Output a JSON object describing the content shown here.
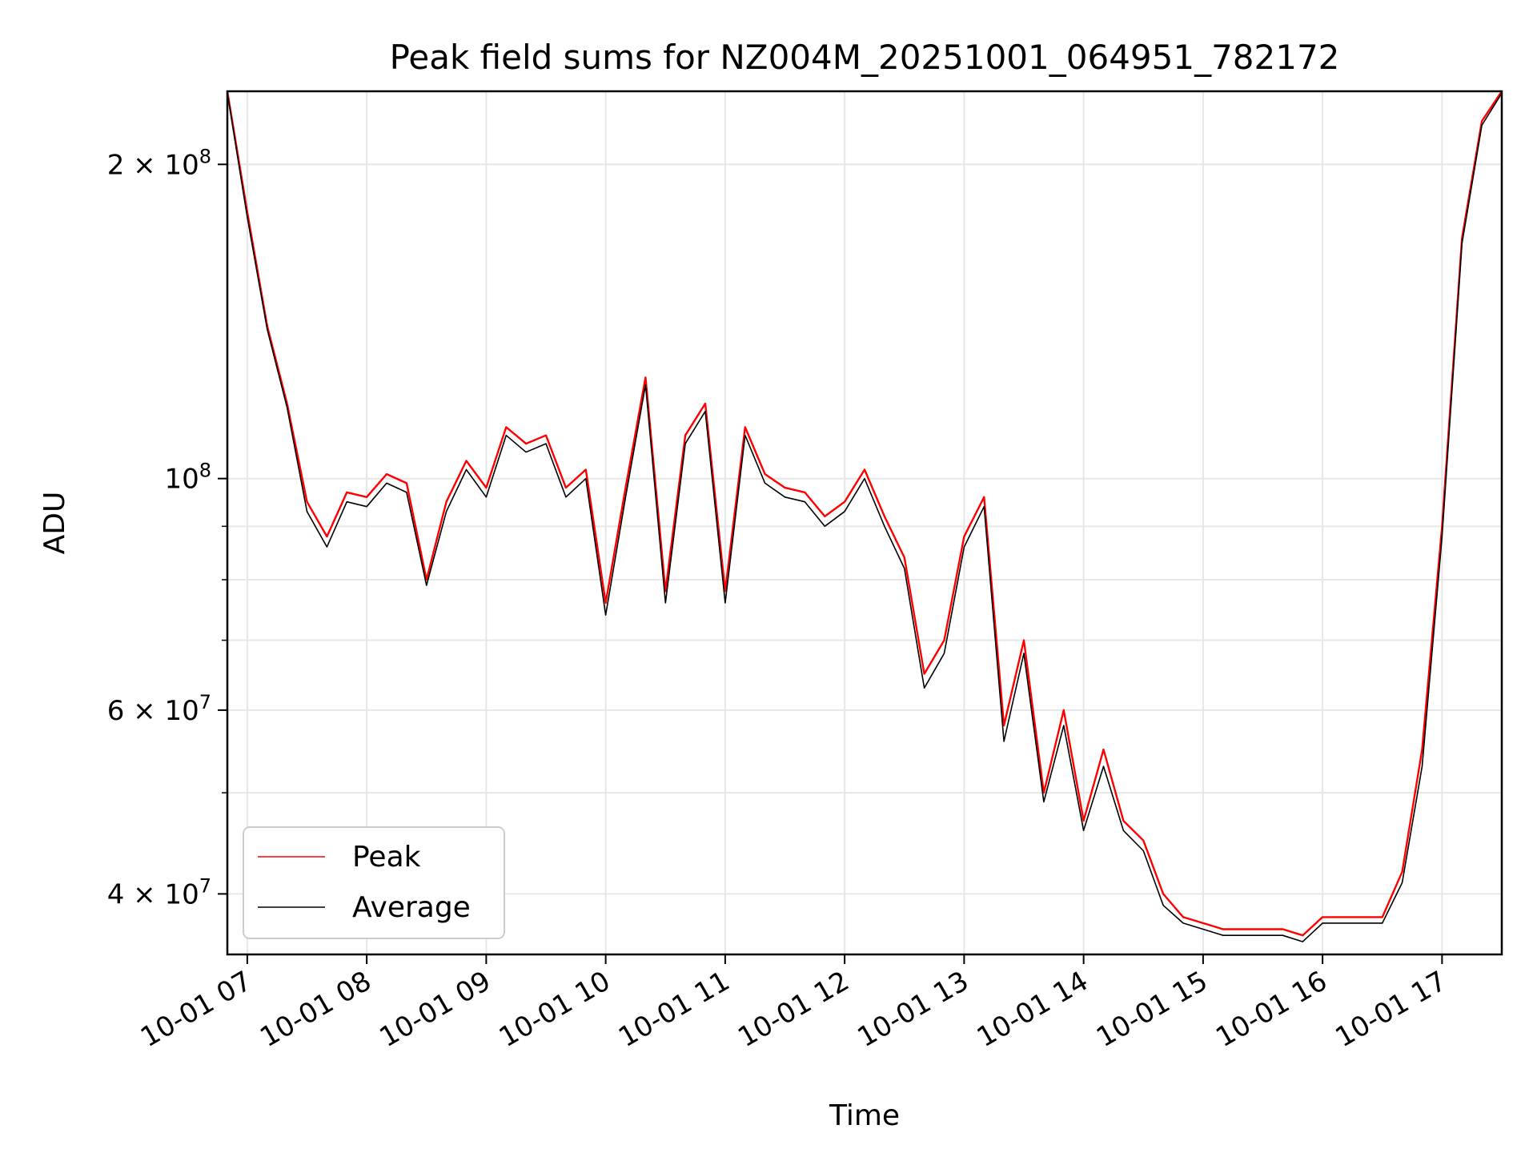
{
  "chart_data": {
    "type": "line",
    "title": "Peak field sums for NZ004M_20251001_064951_782172",
    "xlabel": "Time",
    "ylabel": "ADU",
    "x_range": [
      "2025-10-01 06:50",
      "2025-10-01 17:30"
    ],
    "y_range": [
      35000000,
      235000000
    ],
    "y_scale": "log",
    "grid": true,
    "legend_position": "lower-left",
    "x_ticks": [
      "10-01 07",
      "10-01 08",
      "10-01 09",
      "10-01 10",
      "10-01 11",
      "10-01 12",
      "10-01 13",
      "10-01 14",
      "10-01 15",
      "10-01 16",
      "10-01 17"
    ],
    "y_ticks": [
      {
        "value": 40000000,
        "mantissa": "4",
        "exp": "7"
      },
      {
        "value": 60000000,
        "mantissa": "6",
        "exp": "7"
      },
      {
        "value": 100000000,
        "mantissa": "",
        "exp": "8"
      },
      {
        "value": 200000000,
        "mantissa": "2",
        "exp": "8"
      }
    ],
    "x": [
      "06:50",
      "07:00",
      "07:10",
      "07:20",
      "07:30",
      "07:40",
      "07:50",
      "08:00",
      "08:10",
      "08:20",
      "08:30",
      "08:40",
      "08:50",
      "09:00",
      "09:10",
      "09:20",
      "09:30",
      "09:40",
      "09:50",
      "10:00",
      "10:10",
      "10:20",
      "10:30",
      "10:40",
      "10:50",
      "11:00",
      "11:10",
      "11:20",
      "11:30",
      "11:40",
      "11:50",
      "12:00",
      "12:10",
      "12:20",
      "12:30",
      "12:40",
      "12:50",
      "13:00",
      "13:10",
      "13:20",
      "13:30",
      "13:40",
      "13:50",
      "14:00",
      "14:10",
      "14:20",
      "14:30",
      "14:40",
      "14:50",
      "15:00",
      "15:10",
      "15:20",
      "15:30",
      "15:40",
      "15:50",
      "16:00",
      "16:10",
      "16:20",
      "16:30",
      "16:40",
      "16:50",
      "17:00",
      "17:10",
      "17:20",
      "17:30"
    ],
    "series": [
      {
        "name": "Peak",
        "color": "#ff0000",
        "values": [
          235000000,
          180000000,
          140000000,
          118000000,
          95000000,
          88000000,
          97000000,
          96000000,
          101000000,
          99000000,
          80000000,
          95000000,
          104000000,
          98000000,
          112000000,
          108000000,
          110000000,
          98000000,
          102000000,
          76000000,
          98000000,
          125000000,
          78000000,
          110000000,
          118000000,
          78000000,
          112000000,
          101000000,
          98000000,
          97000000,
          92000000,
          95000000,
          102000000,
          92000000,
          84000000,
          65000000,
          70000000,
          88000000,
          96000000,
          58000000,
          70000000,
          50000000,
          60000000,
          47000000,
          55000000,
          47000000,
          45000000,
          40000000,
          38000000,
          37500000,
          37000000,
          37000000,
          37000000,
          37000000,
          36500000,
          38000000,
          38000000,
          38000000,
          38000000,
          42000000,
          55000000,
          90000000,
          170000000,
          220000000,
          235000000
        ]
      },
      {
        "name": "Average",
        "color": "#000000",
        "values": [
          234000000,
          178000000,
          139000000,
          117000000,
          93000000,
          86000000,
          95000000,
          94000000,
          99000000,
          97000000,
          79000000,
          93000000,
          102000000,
          96000000,
          110000000,
          106000000,
          108000000,
          96000000,
          100000000,
          74000000,
          96000000,
          123000000,
          76000000,
          108000000,
          116000000,
          76000000,
          110000000,
          99000000,
          96000000,
          95000000,
          90000000,
          93000000,
          100000000,
          90000000,
          82000000,
          63000000,
          68000000,
          86000000,
          94000000,
          56000000,
          68000000,
          49000000,
          58000000,
          46000000,
          53000000,
          46000000,
          44000000,
          39000000,
          37500000,
          37000000,
          36500000,
          36500000,
          36500000,
          36500000,
          36000000,
          37500000,
          37500000,
          37500000,
          37500000,
          41000000,
          53000000,
          88000000,
          168000000,
          218000000,
          234000000
        ]
      }
    ]
  }
}
